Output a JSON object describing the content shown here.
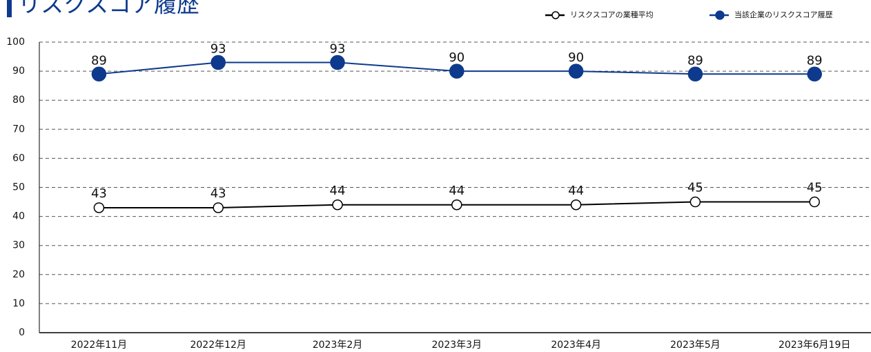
{
  "chart_data": {
    "type": "line",
    "title": "リスクスコア履歴",
    "categories": [
      "2022年11月",
      "2022年12月",
      "2023年2月",
      "2023年3月",
      "2023年4月",
      "2023年5月",
      "2023年6月19日"
    ],
    "series": [
      {
        "name": "リスクスコアの業種平均",
        "color": "#000000",
        "marker_fill": "#ffffff",
        "values": [
          43,
          43,
          44,
          44,
          44,
          45,
          45
        ]
      },
      {
        "name": "当該企業のリスクスコア履歴",
        "color": "#0d3a8c",
        "marker_fill": "#0d3a8c",
        "values": [
          89,
          93,
          93,
          90,
          90,
          89,
          89
        ]
      }
    ],
    "ylim": [
      0,
      100
    ],
    "yticks": [
      0,
      10,
      20,
      30,
      40,
      50,
      60,
      70,
      80,
      90,
      100
    ],
    "grid": true,
    "legend": "top-right"
  }
}
